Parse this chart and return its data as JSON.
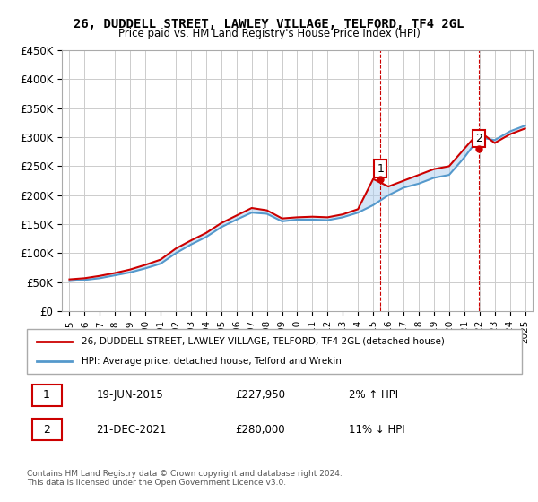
{
  "title": "26, DUDDELL STREET, LAWLEY VILLAGE, TELFORD, TF4 2GL",
  "subtitle": "Price paid vs. HM Land Registry's House Price Index (HPI)",
  "xlabel": "",
  "ylabel": "",
  "ylim": [
    0,
    450000
  ],
  "yticks": [
    0,
    50000,
    100000,
    150000,
    200000,
    250000,
    300000,
    350000,
    400000,
    450000
  ],
  "ytick_labels": [
    "£0",
    "£50K",
    "£100K",
    "£150K",
    "£200K",
    "£250K",
    "£300K",
    "£350K",
    "£400K",
    "£450K"
  ],
  "xtick_years": [
    1995,
    1996,
    1997,
    1998,
    1999,
    2000,
    2001,
    2002,
    2003,
    2004,
    2005,
    2006,
    2007,
    2008,
    2009,
    2010,
    2011,
    2012,
    2013,
    2014,
    2015,
    2016,
    2017,
    2018,
    2019,
    2020,
    2021,
    2022,
    2023,
    2024,
    2025
  ],
  "background_color": "#ffffff",
  "plot_bg_color": "#ffffff",
  "grid_color": "#cccccc",
  "red_line_color": "#cc0000",
  "blue_line_color": "#5599cc",
  "fill_color": "#aaccee",
  "sale1_x": 2015.47,
  "sale1_y": 227950,
  "sale2_x": 2021.97,
  "sale2_y": 280000,
  "sale1_label": "1",
  "sale2_label": "2",
  "legend_line1": "26, DUDDELL STREET, LAWLEY VILLAGE, TELFORD, TF4 2GL (detached house)",
  "legend_line2": "HPI: Average price, detached house, Telford and Wrekin",
  "ann1_num": "1",
  "ann1_date": "19-JUN-2015",
  "ann1_price": "£227,950",
  "ann1_hpi": "2% ↑ HPI",
  "ann2_num": "2",
  "ann2_date": "21-DEC-2021",
  "ann2_price": "£280,000",
  "ann2_hpi": "11% ↓ HPI",
  "footnote": "Contains HM Land Registry data © Crown copyright and database right 2024.\nThis data is licensed under the Open Government Licence v3.0.",
  "vline1_color": "#cc0000",
  "vline2_color": "#cc0000",
  "hpi_years": [
    1995,
    1996,
    1997,
    1998,
    1999,
    2000,
    2001,
    2002,
    2003,
    2004,
    2005,
    2006,
    2007,
    2008,
    2009,
    2010,
    2011,
    2012,
    2013,
    2014,
    2015,
    2016,
    2017,
    2018,
    2019,
    2020,
    2021,
    2022,
    2023,
    2024,
    2025
  ],
  "hpi_values": [
    52000,
    54000,
    57000,
    62000,
    67000,
    74000,
    82000,
    100000,
    115000,
    128000,
    145000,
    158000,
    170000,
    168000,
    155000,
    158000,
    158000,
    157000,
    162000,
    170000,
    183000,
    200000,
    213000,
    220000,
    230000,
    235000,
    265000,
    300000,
    295000,
    310000,
    320000
  ],
  "prop_years": [
    1995,
    1996,
    1997,
    1998,
    1999,
    2000,
    2001,
    2002,
    2003,
    2004,
    2005,
    2006,
    2007,
    2008,
    2009,
    2010,
    2011,
    2012,
    2013,
    2014,
    2015,
    2016,
    2017,
    2018,
    2019,
    2020,
    2021,
    2022,
    2023,
    2024,
    2025
  ],
  "prop_values": [
    55000,
    57000,
    61000,
    66000,
    72000,
    80000,
    89000,
    108000,
    122000,
    135000,
    152000,
    165000,
    178000,
    174000,
    160000,
    162000,
    163000,
    162000,
    167000,
    176000,
    228000,
    215000,
    225000,
    235000,
    245000,
    250000,
    280000,
    310000,
    290000,
    305000,
    315000
  ]
}
